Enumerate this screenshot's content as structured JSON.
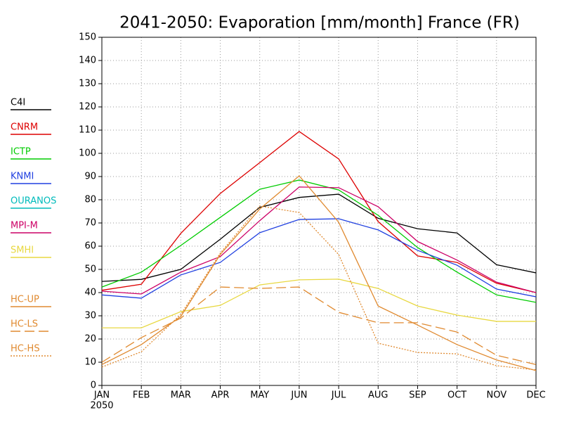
{
  "chart_data": {
    "type": "line",
    "title": "2041-2050: Evaporation [mm/month] France (FR)",
    "categories": [
      "JAN",
      "FEB",
      "MAR",
      "APR",
      "MAY",
      "JUN",
      "JUL",
      "AUG",
      "SEP",
      "OCT",
      "NOV",
      "DEC"
    ],
    "year_label": "2050",
    "ylim": [
      0,
      150
    ],
    "yticks": [
      0,
      10,
      20,
      30,
      40,
      50,
      60,
      70,
      80,
      90,
      100,
      110,
      120,
      130,
      140,
      150
    ],
    "grid": true,
    "legend": "left",
    "series": [
      {
        "name": "C4I",
        "color": "#000000",
        "dash": "solid",
        "values": [
          44.8,
          45.7,
          50,
          63,
          76.7,
          81,
          82.4,
          72,
          67.5,
          65.7,
          52,
          48.5
        ]
      },
      {
        "name": "CNRM",
        "color": "#dd0000",
        "dash": "solid",
        "values": [
          41,
          43.6,
          65.5,
          82.7,
          96,
          109.4,
          97.6,
          70.6,
          55.8,
          53,
          44,
          40
        ]
      },
      {
        "name": "ICTP",
        "color": "#00cc00",
        "dash": "solid",
        "values": [
          42.4,
          48.8,
          60.3,
          72.4,
          84.5,
          88.5,
          84.2,
          73.3,
          59.4,
          48.8,
          39,
          35.8
        ]
      },
      {
        "name": "KNMI",
        "color": "#2040e0",
        "dash": "solid",
        "values": [
          39,
          37.6,
          47.6,
          53,
          65.8,
          71.5,
          71.8,
          67,
          58.2,
          51.8,
          41.5,
          38.2
        ]
      },
      {
        "name": "OURANOS",
        "color": "#00bbbb",
        "dash": "solid",
        "values": [
          null,
          null,
          null,
          null,
          null,
          null,
          null,
          null,
          null,
          null,
          null,
          null
        ]
      },
      {
        "name": "MPI-M",
        "color": "#cc0066",
        "dash": "solid",
        "values": [
          40.6,
          39.4,
          48.8,
          55.5,
          71,
          85.5,
          85.2,
          77,
          62,
          54,
          44.5,
          40
        ]
      },
      {
        "name": "SMHI",
        "color": "#e8d840",
        "dash": "solid",
        "values": [
          24.8,
          24.8,
          31.8,
          34.5,
          43.3,
          45.5,
          45.8,
          41.8,
          34.2,
          30.3,
          27.6,
          27.6
        ]
      },
      {
        "name": "HC-UP",
        "color": "#e08a30",
        "dash": "solid",
        "values": [
          9,
          17.6,
          29.7,
          56.4,
          76,
          90.3,
          70.3,
          34.2,
          26,
          17.6,
          11,
          6.4
        ]
      },
      {
        "name": "HC-LS",
        "color": "#e08a30",
        "dash": "dashed",
        "values": [
          10,
          20.6,
          29,
          42.4,
          41.8,
          42.4,
          31.5,
          27,
          27,
          23,
          13,
          9
        ]
      },
      {
        "name": "HC-HS",
        "color": "#e08a30",
        "dash": "dotted",
        "values": [
          7.9,
          14.5,
          30.6,
          57,
          77.3,
          74.5,
          56.4,
          18.2,
          14.2,
          13.6,
          8.5,
          6.7
        ]
      }
    ]
  }
}
